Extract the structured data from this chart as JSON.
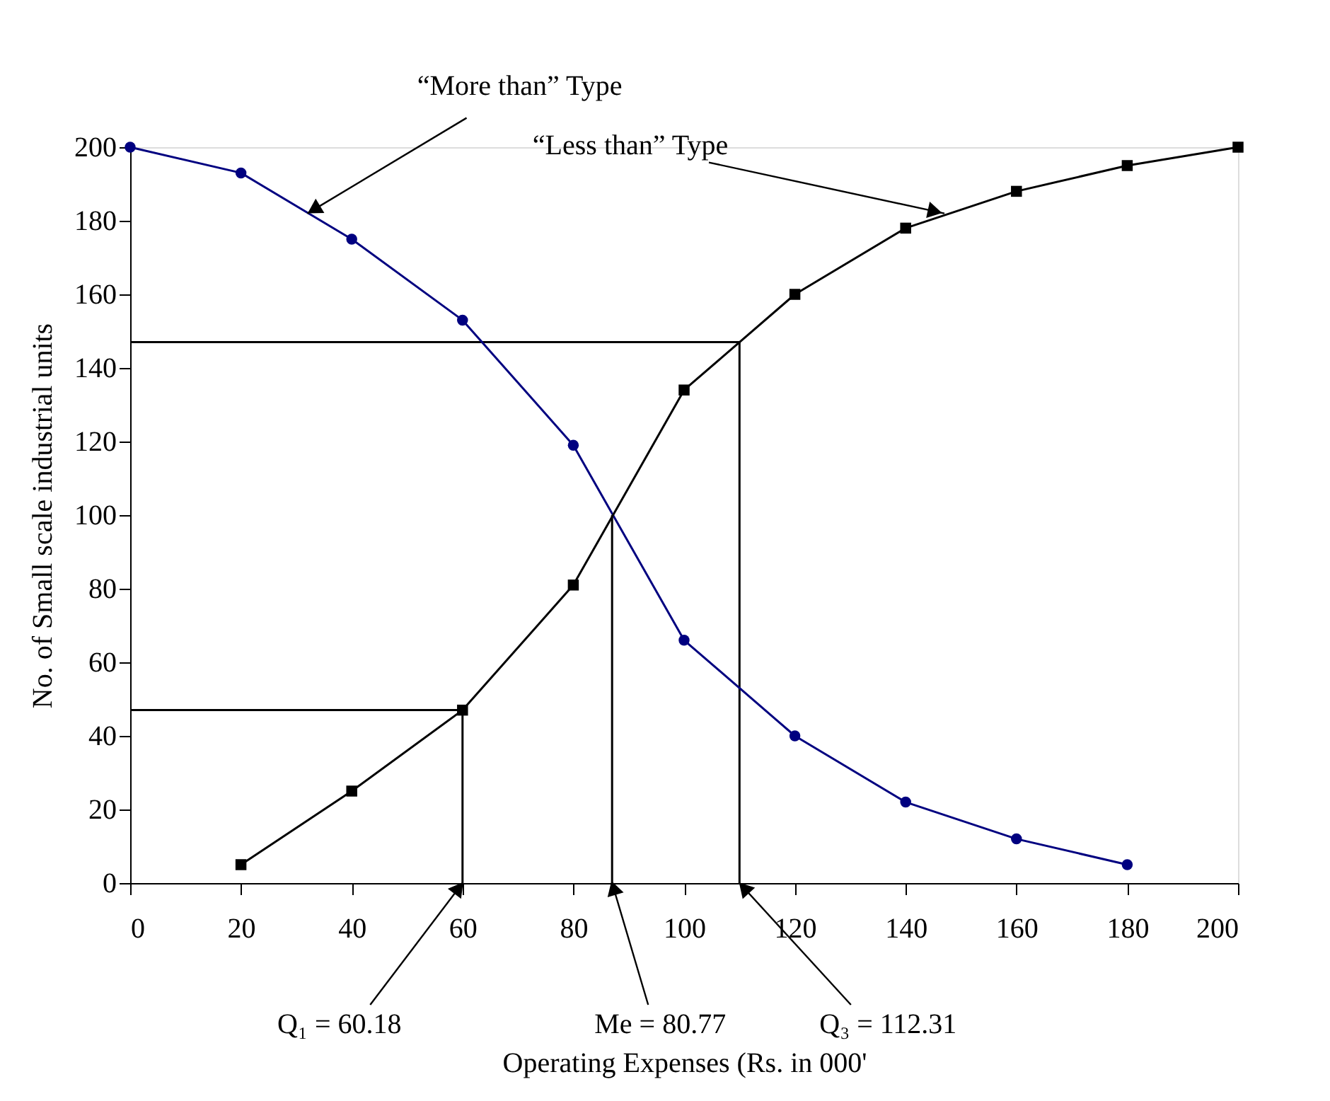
{
  "chart_data": {
    "type": "line",
    "xlabel": "Operating Expenses (Rs. in 000'",
    "ylabel": "No. of Small scale industrial units",
    "xlim": [
      0,
      200
    ],
    "xticks": [
      0,
      20,
      40,
      60,
      80,
      100,
      120,
      140,
      160,
      180,
      200
    ],
    "ylim": [
      0,
      200
    ],
    "yticks": [
      0,
      20,
      40,
      60,
      80,
      100,
      120,
      140,
      160,
      180,
      200
    ],
    "grid": false,
    "series": [
      {
        "color": "#000000",
        "x": [
          0,
          110,
          110
        ],
        "values": [
          147,
          147,
          0
        ],
        "marker": "none"
      },
      {
        "color": "#000000",
        "x": [
          0,
          60,
          60
        ],
        "values": [
          47,
          47,
          0
        ],
        "marker": "none"
      },
      {
        "color": "#000000",
        "x": [
          87,
          87
        ],
        "values": [
          100,
          0
        ],
        "marker": "none"
      },
      {
        "color": "#000080",
        "x": [
          0,
          20,
          40,
          60,
          80,
          100,
          120,
          140,
          160,
          180
        ],
        "values": [
          200,
          193,
          175,
          153,
          119,
          66,
          40,
          22,
          12,
          5
        ],
        "marker": "circle"
      },
      {
        "color": "#000000",
        "x": [
          20,
          40,
          60,
          80,
          100,
          120,
          140,
          160,
          180,
          200
        ],
        "values": [
          5,
          25,
          47,
          81,
          134,
          160,
          178,
          188,
          195,
          200
        ],
        "marker": "square"
      }
    ],
    "annotations": [
      {
        "text": "“More than” Type",
        "x": 32,
        "y": 182
      },
      {
        "text": "“Less than” Type",
        "x": 147,
        "y": 182
      },
      {
        "text": "Q₁ = 60.18",
        "x": 60,
        "y": 0
      },
      {
        "text": "Me = 80.77",
        "x": 87,
        "y": 0
      },
      {
        "text": "Q₃ = 112.31",
        "x": 110,
        "y": 0
      }
    ]
  }
}
